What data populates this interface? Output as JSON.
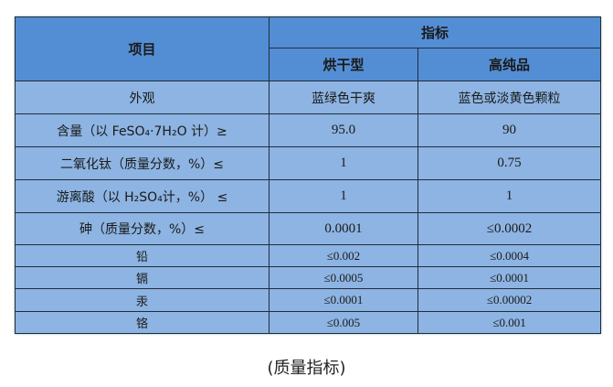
{
  "table": {
    "header": {
      "item": "项目",
      "indicator": "指标",
      "col1": "烘干型",
      "col2": "高纯品"
    },
    "rows": [
      {
        "item": "外观",
        "v1": "蓝绿色干爽",
        "v2": "蓝色或淡黄色颗粒"
      },
      {
        "item": "含量（以 FeSO₄·7H₂O 计）≥",
        "v1": "95.0",
        "v2": "90"
      },
      {
        "item": "二氧化钛（质量分数，%）≤",
        "v1": "1",
        "v2": "0.75"
      },
      {
        "item": "游离酸（以 H₂SO₄计，%） ≤",
        "v1": "1",
        "v2": "1"
      },
      {
        "item": "砷（质量分数，%）≤",
        "v1": "0.0001",
        "v2": "≤0.0002"
      },
      {
        "item": "铅",
        "v1": "≤0.002",
        "v2": "≤0.0004"
      },
      {
        "item": "镉",
        "v1": "≤0.0005",
        "v2": "≤0.0001"
      },
      {
        "item": "汞",
        "v1": "≤0.0001",
        "v2": "≤0.00002"
      },
      {
        "item": "铬",
        "v1": "≤0.005",
        "v2": "≤0.001"
      }
    ]
  },
  "caption": "(质量指标)",
  "colors": {
    "header_bg": "#538ed5",
    "body_bg": "#8db4e2",
    "border": "#1f2d3d"
  }
}
